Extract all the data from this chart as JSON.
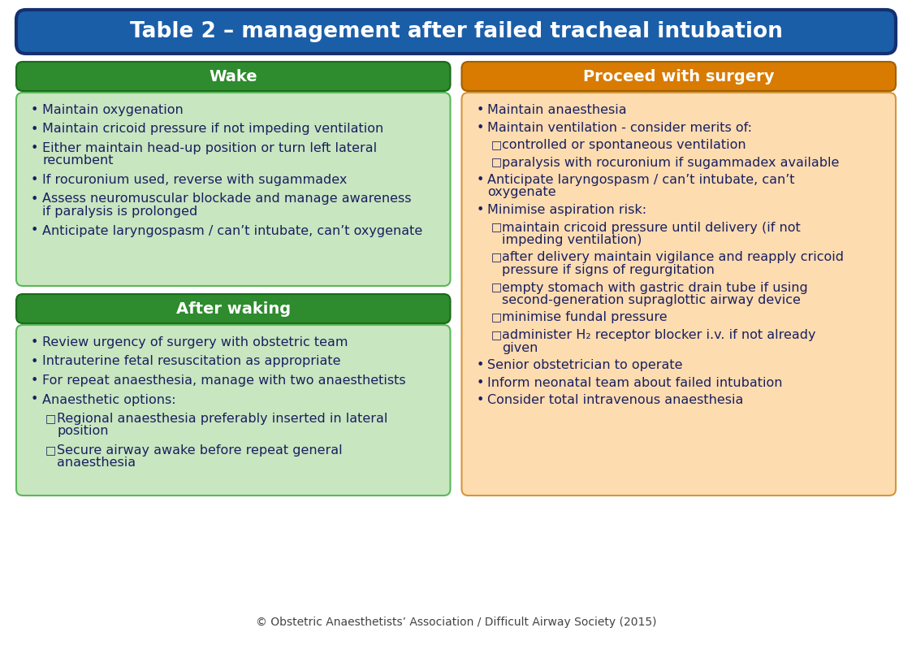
{
  "title": "Table 2 – management after failed tracheal intubation",
  "title_bg": "#1B5EA8",
  "title_border": "#143070",
  "title_color": "#FFFFFF",
  "title_fontsize": 19,
  "left_header1": "Wake",
  "left_header2": "After waking",
  "left_header_bg": "#2E8B2E",
  "left_header_color": "#FFFFFF",
  "left_content_bg": "#C8E6C0",
  "left_border": "#5ab85a",
  "right_header": "Proceed with surgery",
  "right_header_bg": "#D97B00",
  "right_header_color": "#FFFFFF",
  "right_content_bg": "#FDDCB0",
  "right_border": "#d4963c",
  "text_color": "#1a2060",
  "wake_items": [
    {
      "type": "bullet",
      "text": "Maintain oxygenation"
    },
    {
      "type": "bullet",
      "text": "Maintain cricoid pressure if not impeding ventilation"
    },
    {
      "type": "bullet",
      "text": "Either maintain head-up position or turn left lateral\nrecumbent"
    },
    {
      "type": "bullet",
      "text": "If rocuronium used, reverse with sugammadex"
    },
    {
      "type": "bullet",
      "text": "Assess neuromuscular blockade and manage awareness\nif paralysis is prolonged"
    },
    {
      "type": "bullet",
      "text": "Anticipate laryngospasm / can’t intubate, can’t oxygenate"
    }
  ],
  "after_waking_items": [
    {
      "type": "bullet",
      "text": "Review urgency of surgery with obstetric team"
    },
    {
      "type": "bullet",
      "text": "Intrauterine fetal resuscitation as appropriate"
    },
    {
      "type": "bullet",
      "text": "For repeat anaesthesia, manage with two anaesthetists"
    },
    {
      "type": "bullet",
      "text": "Anaesthetic options:"
    },
    {
      "type": "sub",
      "text": "Regional anaesthesia preferably inserted in lateral\nposition"
    },
    {
      "type": "sub",
      "text": "Secure airway awake before repeat general\nanaesthesia"
    }
  ],
  "proceed_items": [
    {
      "type": "bullet",
      "text": "Maintain anaesthesia"
    },
    {
      "type": "bullet",
      "text": "Maintain ventilation - consider merits of:"
    },
    {
      "type": "sub",
      "text": "controlled or spontaneous ventilation"
    },
    {
      "type": "sub",
      "text": "paralysis with rocuronium if sugammadex available"
    },
    {
      "type": "bullet",
      "text": "Anticipate laryngospasm / can’t intubate, can’t\noxygenate"
    },
    {
      "type": "bullet",
      "text": "Minimise aspiration risk:"
    },
    {
      "type": "sub",
      "text": "maintain cricoid pressure until delivery (if not\nimpeding ventilation)"
    },
    {
      "type": "sub",
      "text": "after delivery maintain vigilance and reapply cricoid\npressure if signs of regurgitation"
    },
    {
      "type": "sub",
      "text": "empty stomach with gastric drain tube if using\nsecond-generation supraglottic airway device"
    },
    {
      "type": "sub",
      "text": "minimise fundal pressure"
    },
    {
      "type": "sub",
      "text": "administer H₂ receptor blocker i.v. if not already\ngiven"
    },
    {
      "type": "bullet",
      "text": "Senior obstetrician to operate"
    },
    {
      "type": "bullet",
      "text": "Inform neonatal team about failed intubation"
    },
    {
      "type": "bullet",
      "text": "Consider total intravenous anaesthesia"
    }
  ],
  "footer_text": "© Obstetric Anaesthetists’ Association / Difficult Airway Society (2015)",
  "bg_color": "#FFFFFF"
}
